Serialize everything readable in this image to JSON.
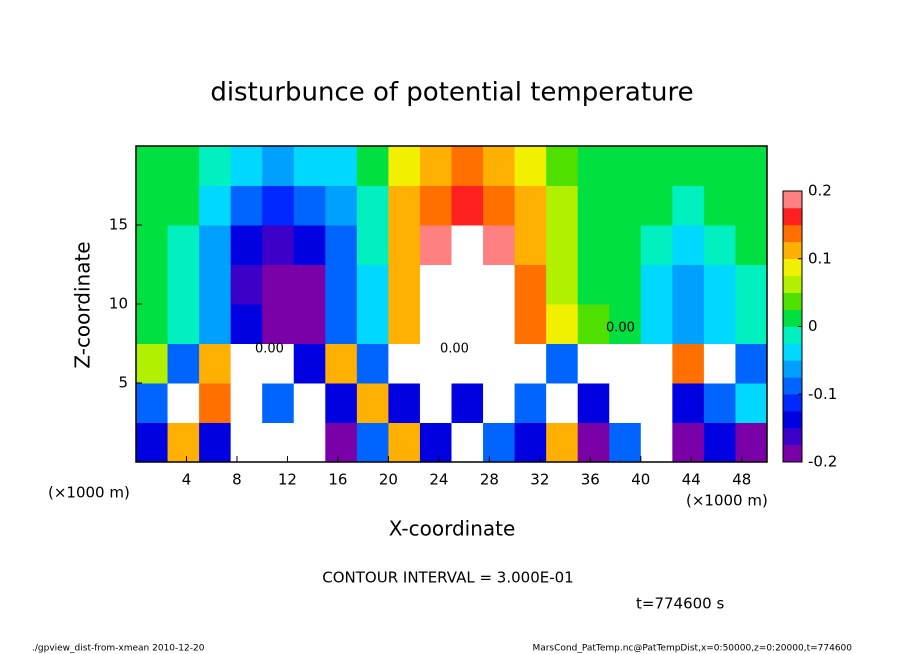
{
  "chart_data": {
    "type": "heatmap",
    "title": "disturbunce of potential temperature",
    "xlabel": "X-coordinate",
    "ylabel": "Z-coordinate",
    "x_unit": "(×1000 m)",
    "y_unit": "(×1000 m)",
    "xlim": [
      0,
      50
    ],
    "xticks": [
      4,
      8,
      12,
      16,
      20,
      24,
      28,
      32,
      36,
      40,
      44,
      48
    ],
    "ylim": [
      0,
      20
    ],
    "yticks": [
      5,
      10,
      15
    ],
    "x": [
      1.25,
      3.75,
      6.25,
      8.75,
      11.25,
      13.75,
      16.25,
      18.75,
      21.25,
      23.75,
      26.25,
      28.75,
      31.25,
      33.75,
      36.25,
      38.75,
      41.25,
      43.75,
      46.25,
      48.75
    ],
    "y": [
      1.25,
      3.75,
      6.25,
      8.75,
      11.25,
      13.75,
      16.25,
      18.75
    ],
    "z": [
      [
        -0.15,
        0.1,
        -0.15,
        0.25,
        0.25,
        0.2,
        -0.2,
        -0.1,
        0.1,
        -0.15,
        0.25,
        -0.1,
        -0.15,
        0.1,
        -0.2,
        -0.1,
        0.2,
        -0.2,
        -0.15,
        -0.2
      ],
      [
        -0.1,
        0.25,
        0.15,
        0.25,
        -0.1,
        0.25,
        -0.15,
        0.1,
        -0.15,
        0.25,
        -0.15,
        0.25,
        -0.1,
        0.2,
        -0.15,
        0.25,
        0.25,
        -0.15,
        -0.1,
        -0.05
      ],
      [
        0.05,
        -0.1,
        0.1,
        0.25,
        0.25,
        -0.15,
        0.1,
        -0.1,
        0.25,
        0.25,
        0.25,
        0.25,
        0.2,
        -0.1,
        0.25,
        0.25,
        0.25,
        0.15,
        0.25,
        -0.1
      ],
      [
        0,
        -0.02,
        -0.06,
        -0.15,
        -0.25,
        -0.22,
        -0.1,
        -0.03,
        0.11,
        0.2,
        0.25,
        0.22,
        0.15,
        0.08,
        0.03,
        0,
        -0.03,
        -0.07,
        -0.05,
        -0.02
      ],
      [
        0,
        -0.01,
        -0.07,
        -0.16,
        -0.2,
        -0.18,
        -0.1,
        -0.03,
        0.12,
        0.2,
        0.25,
        0.22,
        0.14,
        0.07,
        0.02,
        0,
        -0.03,
        -0.06,
        -0.04,
        -0.01
      ],
      [
        0,
        -0.01,
        -0.06,
        -0.13,
        -0.16,
        -0.14,
        -0.08,
        -0.02,
        0.11,
        0.18,
        0.2,
        0.18,
        0.12,
        0.05,
        0.02,
        0,
        -0.02,
        -0.03,
        -0.02,
        0
      ],
      [
        0,
        0,
        -0.04,
        -0.09,
        -0.11,
        -0.1,
        -0.06,
        -0.01,
        0.1,
        0.15,
        0.17,
        0.15,
        0.1,
        0.05,
        0.01,
        0,
        0,
        -0.01,
        0,
        0
      ],
      [
        0,
        0,
        -0.02,
        -0.05,
        -0.06,
        -0.05,
        -0.03,
        0,
        0.08,
        0.12,
        0.13,
        0.12,
        0.08,
        0.04,
        0.01,
        0,
        0,
        0,
        0,
        0
      ]
    ],
    "clim": [
      -0.2,
      0.2
    ],
    "cticks": [
      -0.2,
      -0.1,
      0,
      0.1,
      0.2
    ],
    "colors": [
      "#7a00a8",
      "#3c00c8",
      "#0000e0",
      "#0028ff",
      "#0064ff",
      "#00a0ff",
      "#00d8ff",
      "#00f0c0",
      "#00e040",
      "#50e000",
      "#b0f000",
      "#f0f000",
      "#ffb000",
      "#ff7000",
      "#ff2020",
      "#ff8080"
    ],
    "over_color": "#ffffff",
    "contour_label": "0.00",
    "contour_interval": "CONTOUR INTERVAL = 3.000E-01",
    "time_label": "t=774600 s",
    "footer_left": "./gpview_dist-from-xmean  2010-12-20",
    "footer_right": "MarsCond_PatTemp.nc@PatTempDist,x=0:50000,z=0:20000,t=774600"
  }
}
